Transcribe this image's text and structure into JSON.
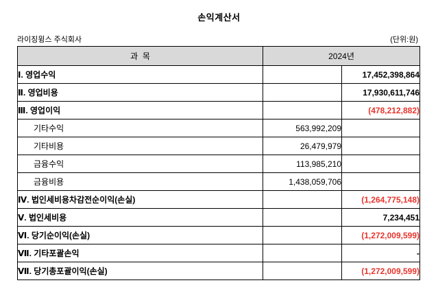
{
  "title": "손익계산서",
  "company": "라이징윙스 주식회사",
  "unit_label": "(단위:원)",
  "colors": {
    "header_bg": "#d9d9d9",
    "negative_red": "#e8342c",
    "border": "#000000"
  },
  "table": {
    "header": {
      "item": "과  목",
      "year": "2024년"
    },
    "rows": [
      {
        "label": "Ⅰ. 영업수익",
        "mid": "",
        "right": "17,452,398,864",
        "major": true,
        "indent": false,
        "red": false
      },
      {
        "label": "Ⅱ. 영업비용",
        "mid": "",
        "right": "17,930,611,746",
        "major": true,
        "indent": false,
        "red": false
      },
      {
        "label": "Ⅲ. 영업이익",
        "mid": "",
        "right": "(478,212,882)",
        "major": true,
        "indent": false,
        "red": true
      },
      {
        "label": "기타수익",
        "mid": "563,992,209",
        "right": "",
        "major": false,
        "indent": true,
        "red": false
      },
      {
        "label": "기타비용",
        "mid": "26,479,979",
        "right": "",
        "major": false,
        "indent": true,
        "red": false
      },
      {
        "label": "금융수익",
        "mid": "113,985,210",
        "right": "",
        "major": false,
        "indent": true,
        "red": false
      },
      {
        "label": "금융비용",
        "mid": "1,438,059,706",
        "right": "",
        "major": false,
        "indent": true,
        "red": false
      },
      {
        "label": "Ⅳ. 법인세비용차감전순이익(손실)",
        "mid": "",
        "right": "(1,264,775,148)",
        "major": true,
        "indent": false,
        "red": true
      },
      {
        "label": "Ⅴ. 법인세비용",
        "mid": "",
        "right": "7,234,451",
        "major": true,
        "indent": false,
        "red": false
      },
      {
        "label": "Ⅵ. 당기순이익(손실)",
        "mid": "",
        "right": "(1,272,009,599)",
        "major": true,
        "indent": false,
        "red": true
      },
      {
        "label": "Ⅶ. 기타포괄손익",
        "mid": "",
        "right": "-",
        "major": true,
        "indent": false,
        "red": false
      },
      {
        "label": "Ⅶ. 당기총포괄이익(손실)",
        "mid": "",
        "right": "(1,272,009,599)",
        "major": true,
        "indent": false,
        "red": true
      }
    ]
  }
}
